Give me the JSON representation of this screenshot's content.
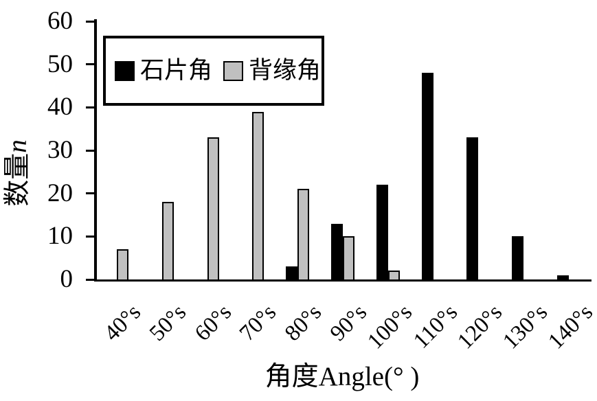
{
  "chart_data": {
    "type": "bar",
    "title": "",
    "categories": [
      "40°s",
      "50°s",
      "60°s",
      "70°s",
      "80°s",
      "90°s",
      "100°s",
      "110°s",
      "120°s",
      "130°s",
      "140°s"
    ],
    "series": [
      {
        "name": "石片角",
        "color": "#000000",
        "values": [
          0,
          0,
          0,
          0,
          3,
          13,
          22,
          48,
          33,
          10,
          1
        ]
      },
      {
        "name": "背缘角",
        "color": "#c0c0c0",
        "values": [
          7,
          18,
          33,
          39,
          21,
          10,
          2,
          0,
          0,
          0,
          0
        ]
      }
    ],
    "xlabel": "角度Angle(° )",
    "ylabel": {
      "text": "数量",
      "variable": "n"
    },
    "ylim": [
      0,
      60
    ],
    "yticks": [
      0,
      10,
      20,
      30,
      40,
      50,
      60
    ],
    "grid": false,
    "legend_position": "top-left-inside",
    "bar_outline_color": "#000000",
    "axis_color": "#000000"
  }
}
